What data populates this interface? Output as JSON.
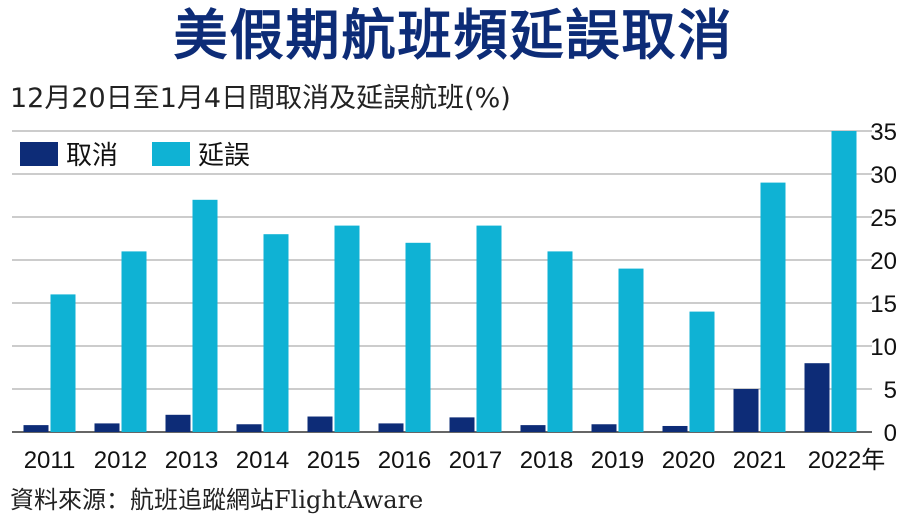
{
  "title": "美假期航班頻延誤取消",
  "subtitle": "12月20日至1月4日間取消及延誤航班(%)",
  "source": "資料來源：航班追蹤網站FlightAware",
  "colors": {
    "title": "#0d2c77",
    "cancel": "#0d2c77",
    "delay": "#0fb2d4"
  },
  "chart_data": {
    "type": "bar",
    "categories": [
      "2011",
      "2012",
      "2013",
      "2014",
      "2015",
      "2016",
      "2017",
      "2018",
      "2019",
      "2020",
      "2021",
      "2022年"
    ],
    "series": [
      {
        "name": "取消",
        "values": [
          0.8,
          1.0,
          2.0,
          0.9,
          1.8,
          1.0,
          1.7,
          0.8,
          0.9,
          0.7,
          5.0,
          8.0
        ]
      },
      {
        "name": "延誤",
        "values": [
          16,
          21,
          27,
          23,
          24,
          22,
          24,
          21,
          19,
          14,
          29,
          35
        ]
      }
    ],
    "ylim": [
      0,
      35
    ],
    "yticks": [
      0,
      5,
      10,
      15,
      20,
      25,
      30,
      35
    ],
    "y_axis_position": "right",
    "grid": true,
    "legend_position": "top-left"
  }
}
